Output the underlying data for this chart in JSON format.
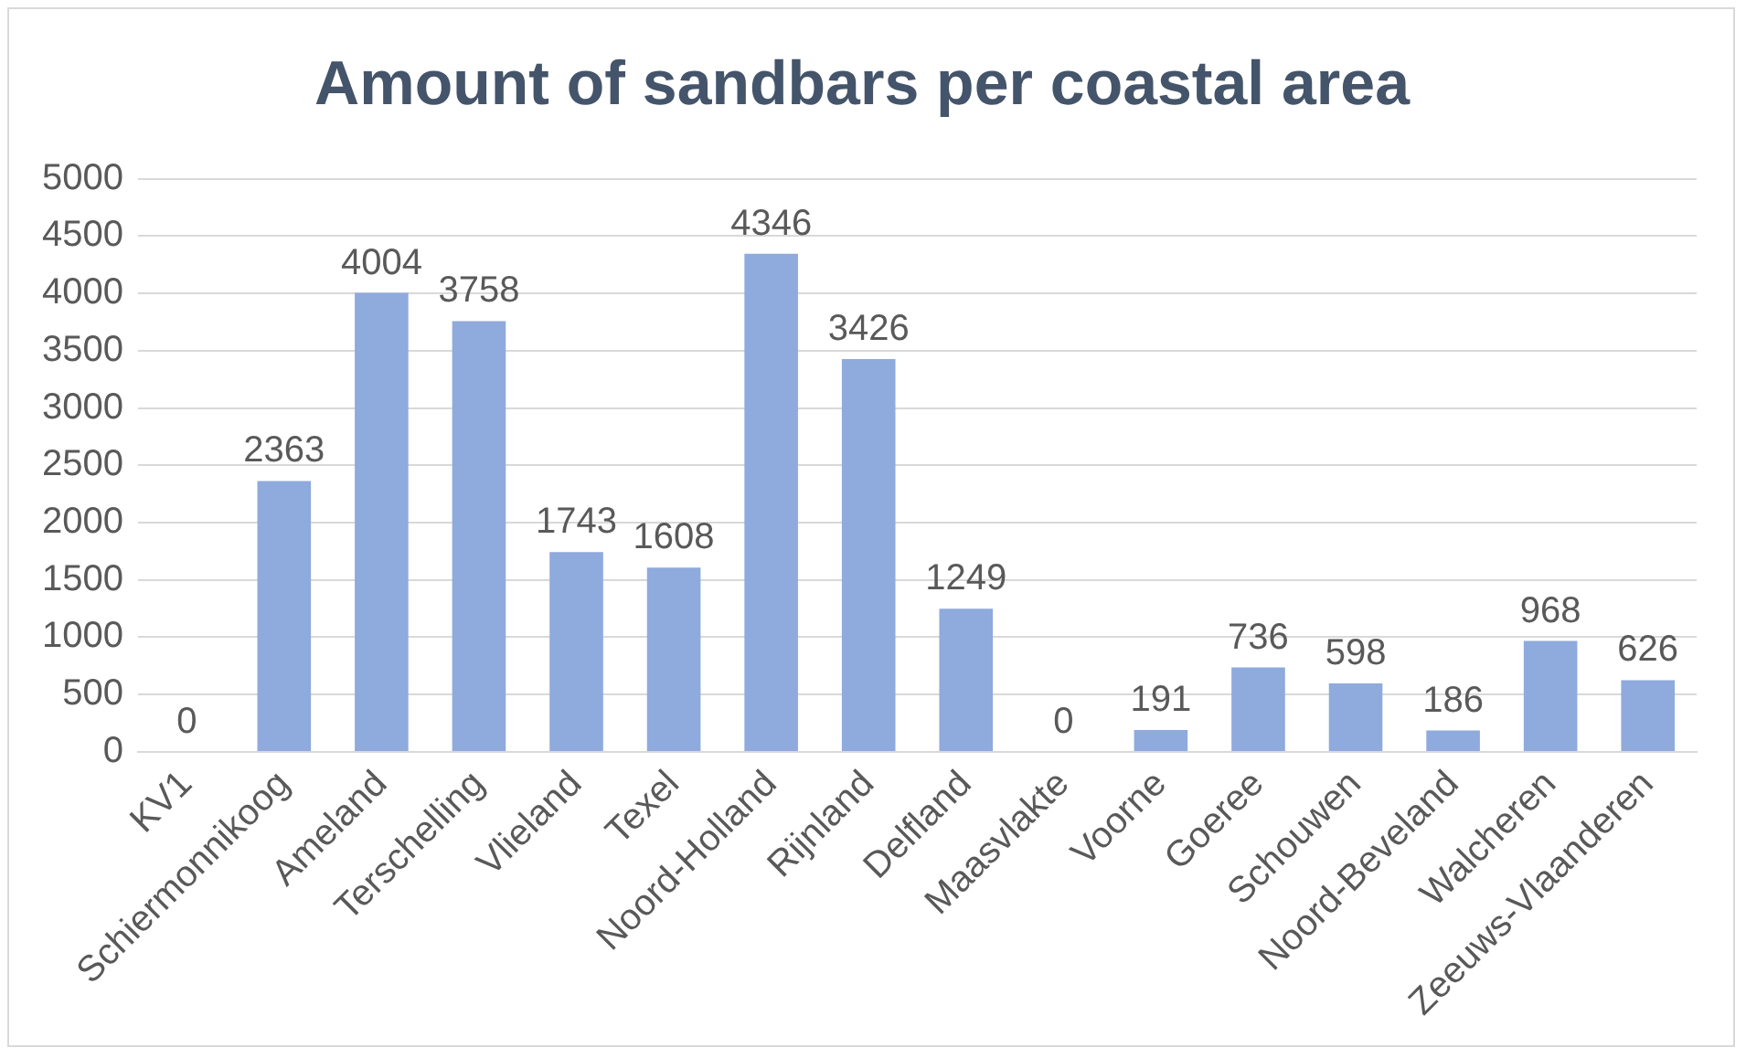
{
  "chart_data": {
    "type": "bar",
    "title": "Amount of sandbars per coastal area",
    "categories": [
      "KV1",
      "Schiermonnikoog",
      "Ameland",
      "Terschelling",
      "Vlieland",
      "Texel",
      "Noord-Holland",
      "Rijnland",
      "Delfland",
      "Maasvlakte",
      "Voorne",
      "Goeree",
      "Schouwen",
      "Noord-Beveland",
      "Walcheren",
      "Zeeuws-Vlaanderen"
    ],
    "values": [
      0,
      2363,
      4004,
      3758,
      1743,
      1608,
      4346,
      3426,
      1249,
      0,
      191,
      736,
      598,
      186,
      968,
      626
    ],
    "color": "#8faadc",
    "ylim": [
      0,
      5000
    ],
    "yticks": [
      0,
      500,
      1000,
      1500,
      2000,
      2500,
      3000,
      3500,
      4000,
      4500,
      5000
    ],
    "grid": "y",
    "data_labels": true
  }
}
